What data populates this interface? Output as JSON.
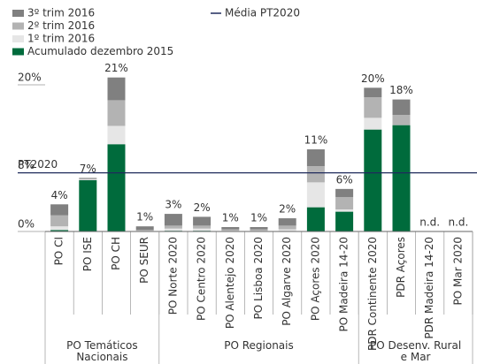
{
  "chart_data": {
    "type": "bar",
    "stacked": true,
    "categories": [
      "PO CI",
      "PO ISE",
      "PO CH",
      "PO SEUR",
      "PO Norte 2020",
      "PO Centro 2020",
      "PO Alentejo 2020",
      "PO Lisboa 2020",
      "PO Algarve 2020",
      "PO Açores 2020",
      "PO Madeira 14-20",
      "PDR Continente 2020",
      "PDR Açores",
      "PDR Madeira 14-20",
      "PO Mar 2020"
    ],
    "groups": [
      {
        "label": "PO Temáticos Nacionais",
        "span": [
          0,
          3
        ]
      },
      {
        "label": "PO Regionais",
        "span": [
          4,
          10
        ]
      },
      {
        "label": "PO Desenv. Rural e Mar",
        "span": [
          11,
          14
        ]
      }
    ],
    "series": [
      {
        "name": "Acumulado dezembro 2015",
        "color": "#006b3c",
        "values": [
          0.2,
          7.0,
          11.9,
          0,
          0.1,
          0.1,
          0,
          0,
          0,
          3.3,
          2.7,
          13.9,
          14.5,
          null,
          null
        ]
      },
      {
        "name": "1º trim 2016",
        "color": "#e6e6e6",
        "values": [
          0.5,
          0.1,
          2.5,
          0.1,
          0.3,
          0.3,
          0.1,
          0.1,
          0.3,
          3.4,
          0.3,
          1.6,
          0,
          null,
          null
        ]
      },
      {
        "name": "2º trim 2016",
        "color": "#b3b3b3",
        "values": [
          1.5,
          0.1,
          3.5,
          0.1,
          0.4,
          0.4,
          0.2,
          0.2,
          0.5,
          2.2,
          1.7,
          2.8,
          1.4,
          null,
          null
        ]
      },
      {
        "name": "3º trim 2016",
        "color": "#808080",
        "values": [
          1.5,
          0.1,
          3.1,
          0.5,
          1.6,
          1.2,
          0.3,
          0.3,
          1.0,
          2.3,
          1.1,
          1.3,
          2.1,
          null,
          null
        ]
      }
    ],
    "total_labels": [
      "4%",
      "7%",
      "21%",
      "1%",
      "3%",
      "2%",
      "1%",
      "1%",
      "2%",
      "11%",
      "6%",
      "20%",
      "18%",
      "n.d.",
      "n.d."
    ],
    "reference_line": {
      "value": 8,
      "label": "PT2020",
      "name": "Média PT2020",
      "color": "#1f2a5c"
    },
    "ylim": [
      0,
      20.5
    ],
    "yticks": [
      {
        "value": 0,
        "label": "0%"
      },
      {
        "value": 8,
        "label": "8%"
      },
      {
        "value": 20,
        "label": "20%"
      }
    ],
    "grid": false
  }
}
